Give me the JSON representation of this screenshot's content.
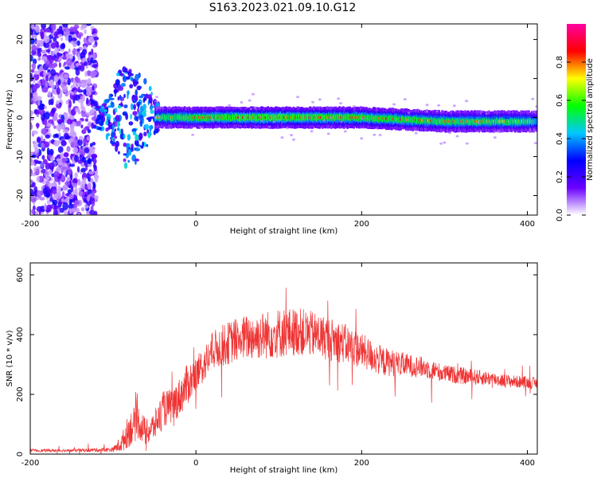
{
  "title": "S163.2023.021.09.10.G12",
  "chart_data": [
    {
      "type": "heatmap",
      "xlabel": "Height of straight line (km)",
      "ylabel": "Frequency (Hz)",
      "xlim": [
        -200,
        412
      ],
      "ylim": [
        -25,
        24
      ],
      "xticks": [
        -200,
        0,
        200,
        400
      ],
      "yticks": [
        -20,
        -10,
        0,
        10,
        20
      ],
      "colorbar": {
        "label": "Normalized spectral amplitude",
        "range": [
          0,
          1
        ],
        "ticks": [
          0.0,
          0.2,
          0.4,
          0.6,
          0.8
        ],
        "tick_labels": [
          "0.0",
          "0.2",
          "0.4",
          "0.6",
          "0.8"
        ],
        "colormap": [
          "#ffffff",
          "#6a00ff",
          "#0000ff",
          "#00c8ff",
          "#00ff00",
          "#ffff00",
          "#ff0000",
          "#ff00a0"
        ]
      },
      "band": {
        "x": [
          -120,
          -100,
          -80,
          -60,
          -45,
          0,
          100,
          200,
          300,
          400,
          412
        ],
        "center_hz": [
          0,
          0,
          0,
          0,
          0,
          0,
          0,
          0,
          -1,
          -1,
          -1
        ],
        "peak_amplitude": [
          0.3,
          0.35,
          0.4,
          0.45,
          0.8,
          0.9,
          0.95,
          0.9,
          0.85,
          0.8,
          0.6
        ]
      }
    },
    {
      "type": "line",
      "xlabel": "Height of straight line (km)",
      "ylabel": "SNR (10 * v/v)",
      "xlim": [
        -200,
        412
      ],
      "ylim": [
        0,
        640
      ],
      "xticks": [
        -200,
        0,
        200,
        400
      ],
      "yticks": [
        0,
        200,
        400,
        600
      ],
      "color": "#ee3333",
      "x": [
        -200,
        -150,
        -100,
        -90,
        -80,
        -70,
        -60,
        -50,
        -40,
        -30,
        -20,
        -10,
        0,
        10,
        20,
        30,
        50,
        75,
        100,
        125,
        150,
        175,
        200,
        225,
        250,
        275,
        300,
        325,
        350,
        375,
        400,
        412
      ],
      "y": [
        12,
        12,
        15,
        35,
        85,
        110,
        70,
        95,
        150,
        160,
        190,
        235,
        265,
        300,
        345,
        360,
        385,
        395,
        405,
        410,
        395,
        375,
        345,
        310,
        300,
        290,
        270,
        260,
        255,
        245,
        240,
        236
      ],
      "spread": [
        5,
        5,
        8,
        30,
        60,
        60,
        45,
        50,
        60,
        60,
        65,
        70,
        60,
        60,
        65,
        70,
        75,
        80,
        85,
        80,
        75,
        70,
        60,
        50,
        40,
        35,
        30,
        28,
        25,
        22,
        20,
        20
      ]
    }
  ]
}
